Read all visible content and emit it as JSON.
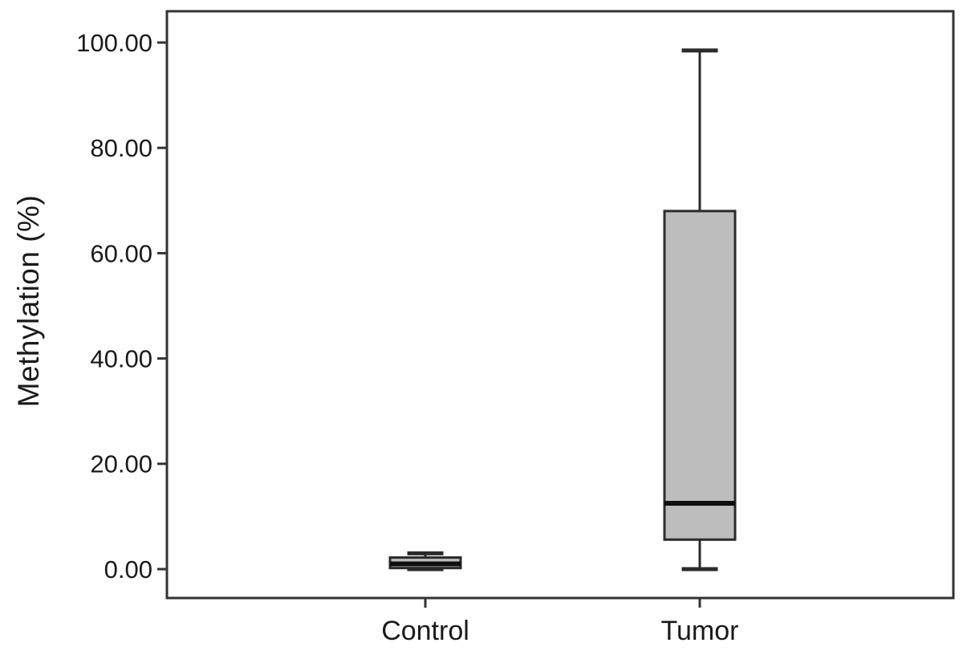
{
  "figure": {
    "background": "#ffffff"
  },
  "chart_data": {
    "type": "boxplot",
    "title": "",
    "xlabel": "",
    "ylabel": "Methylation (%)",
    "categories": [
      "Control",
      "Tumor"
    ],
    "series": [
      {
        "name": "Control",
        "min": 0.0,
        "q1": 0.2,
        "median": 1.0,
        "q3": 2.2,
        "max": 3.0
      },
      {
        "name": "Tumor",
        "min": 0.0,
        "q1": 5.6,
        "median": 12.5,
        "q3": 68.0,
        "max": 98.5
      }
    ],
    "yticks": [
      {
        "value": 0,
        "label": "0.00"
      },
      {
        "value": 20,
        "label": "20.00"
      },
      {
        "value": 40,
        "label": "40.00"
      },
      {
        "value": 60,
        "label": "60.00"
      },
      {
        "value": 80,
        "label": "80.00"
      },
      {
        "value": 100,
        "label": "100.00"
      }
    ],
    "ylim": [
      -5.5,
      106
    ],
    "grid": false,
    "legend": false,
    "colors": {
      "box_fill": "#bdbdbd",
      "box_stroke": "#2b2b2b",
      "median": "#0e0e0e",
      "whisker": "#2b2b2b",
      "frame": "#333333",
      "text": "#1a1a1a",
      "background": "#ffffff"
    }
  }
}
